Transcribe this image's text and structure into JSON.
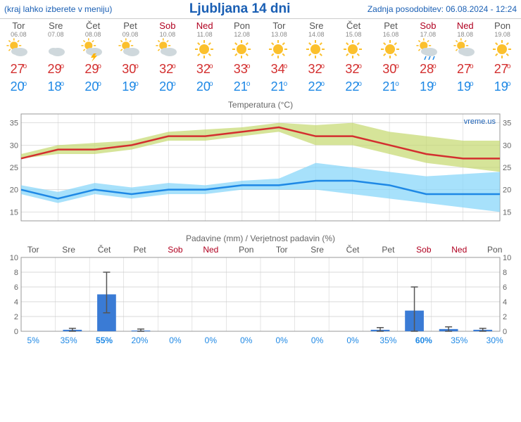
{
  "header": {
    "left": "(kraj lahko izberete v meniju)",
    "title": "Ljubljana 14 dni",
    "right": "Zadnja posodobitev: 06.08.2024 - 12:24"
  },
  "colors": {
    "hi": "#d32f2f",
    "lo": "#1e88e5",
    "weekend": "#b00020",
    "normal": "#555555",
    "grid": "#cccccc",
    "hi_band": "#c5d86d",
    "lo_band": "#81d4fa",
    "precip_bar": "#3a7bd5",
    "precip_err": "#555555",
    "watermark": "#1a5fb4"
  },
  "days": [
    {
      "name": "Tor",
      "date": "06.08",
      "weekend": false,
      "icon": "sun-cloud",
      "hi": 27,
      "lo": 20,
      "precip": 0,
      "err_lo": 0,
      "err_hi": 0,
      "prob": 5
    },
    {
      "name": "Sre",
      "date": "07.08",
      "weekend": false,
      "icon": "cloud",
      "hi": 29,
      "lo": 18,
      "precip": 0.2,
      "err_lo": 0,
      "err_hi": 0.4,
      "prob": 35
    },
    {
      "name": "Čet",
      "date": "08.08",
      "weekend": false,
      "icon": "storm",
      "hi": 29,
      "lo": 20,
      "precip": 5,
      "err_lo": 2.5,
      "err_hi": 8,
      "prob": 55
    },
    {
      "name": "Pet",
      "date": "09.08",
      "weekend": false,
      "icon": "sun-cloud",
      "hi": 30,
      "lo": 19,
      "precip": 0.1,
      "err_lo": 0,
      "err_hi": 0.3,
      "prob": 20
    },
    {
      "name": "Sob",
      "date": "10.08",
      "weekend": true,
      "icon": "sun-cloud",
      "hi": 32,
      "lo": 20,
      "precip": 0,
      "err_lo": 0,
      "err_hi": 0,
      "prob": 0
    },
    {
      "name": "Ned",
      "date": "11.08",
      "weekend": true,
      "icon": "sun",
      "hi": 32,
      "lo": 20,
      "precip": 0,
      "err_lo": 0,
      "err_hi": 0,
      "prob": 0
    },
    {
      "name": "Pon",
      "date": "12.08",
      "weekend": false,
      "icon": "sun",
      "hi": 33,
      "lo": 21,
      "precip": 0,
      "err_lo": 0,
      "err_hi": 0,
      "prob": 0
    },
    {
      "name": "Tor",
      "date": "13.08",
      "weekend": false,
      "icon": "sun",
      "hi": 34,
      "lo": 21,
      "precip": 0,
      "err_lo": 0,
      "err_hi": 0,
      "prob": 0
    },
    {
      "name": "Sre",
      "date": "14.08",
      "weekend": false,
      "icon": "sun",
      "hi": 32,
      "lo": 22,
      "precip": 0,
      "err_lo": 0,
      "err_hi": 0,
      "prob": 0
    },
    {
      "name": "Čet",
      "date": "15.08",
      "weekend": false,
      "icon": "sun",
      "hi": 32,
      "lo": 22,
      "precip": 0,
      "err_lo": 0,
      "err_hi": 0,
      "prob": 0
    },
    {
      "name": "Pet",
      "date": "16.08",
      "weekend": false,
      "icon": "sun",
      "hi": 30,
      "lo": 21,
      "precip": 0.2,
      "err_lo": 0,
      "err_hi": 0.5,
      "prob": 35
    },
    {
      "name": "Sob",
      "date": "17.08",
      "weekend": true,
      "icon": "sun-rain",
      "hi": 28,
      "lo": 19,
      "precip": 2.8,
      "err_lo": 0,
      "err_hi": 6,
      "prob": 60
    },
    {
      "name": "Ned",
      "date": "18.08",
      "weekend": true,
      "icon": "sun-cloud",
      "hi": 27,
      "lo": 19,
      "precip": 0.3,
      "err_lo": 0,
      "err_hi": 0.6,
      "prob": 35
    },
    {
      "name": "Pon",
      "date": "19.08",
      "weekend": false,
      "icon": "sun",
      "hi": 27,
      "lo": 19,
      "precip": 0.2,
      "err_lo": 0,
      "err_hi": 0.4,
      "prob": 30
    }
  ],
  "temp_chart": {
    "title": "Temperatura (°C)",
    "ylim": [
      13,
      37
    ],
    "yticks": [
      15,
      20,
      25,
      30,
      35
    ],
    "watermark": "vreme.us",
    "hi_band_upper": [
      28,
      30,
      30.5,
      31,
      33,
      33.5,
      34,
      35,
      34.5,
      35,
      33,
      32,
      31,
      31
    ],
    "hi_band_lower": [
      27,
      28,
      28,
      29,
      31,
      31,
      32,
      33,
      30,
      30,
      28,
      26,
      25,
      24
    ],
    "lo_band_upper": [
      21,
      19.5,
      21.5,
      20.5,
      21.5,
      21,
      22,
      22.5,
      26,
      25,
      24,
      23,
      23.5,
      24
    ],
    "lo_band_lower": [
      19,
      17,
      19,
      18,
      19,
      19,
      20,
      20,
      20,
      19,
      18,
      17,
      16,
      15
    ]
  },
  "precip_chart": {
    "title": "Padavine (mm) / Verjetnost padavin (%)",
    "ylim": [
      0,
      10
    ],
    "yticks": [
      0,
      2,
      4,
      6,
      8,
      10
    ]
  }
}
